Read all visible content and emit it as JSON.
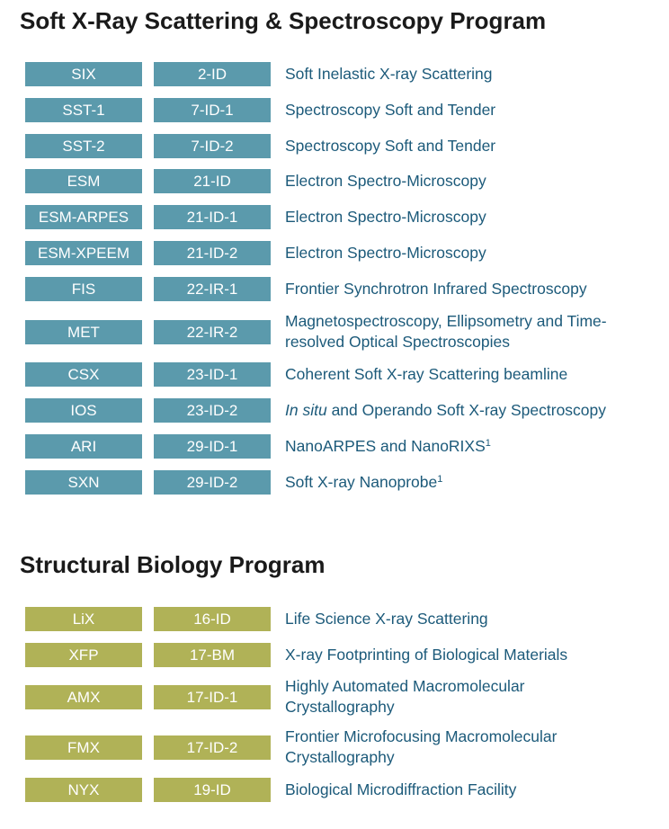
{
  "colors": {
    "soft_xray_badge": "#5b9aac",
    "bio_badge": "#b0b257",
    "link": "#1c5a7a",
    "heading": "#1a1a1a"
  },
  "sections": [
    {
      "title": "Soft X-Ray Scattering & Spectroscopy Program",
      "rows": [
        {
          "acronym": "SIX",
          "beamline": "2-ID",
          "desc": "Soft Inelastic X-ray Scattering"
        },
        {
          "acronym": "SST-1",
          "beamline": "7-ID-1",
          "desc": "Spectroscopy Soft and Tender"
        },
        {
          "acronym": "SST-2",
          "beamline": "7-ID-2",
          "desc": "Spectroscopy Soft and Tender"
        },
        {
          "acronym": "ESM",
          "beamline": "21-ID",
          "desc": "Electron Spectro-Microscopy"
        },
        {
          "acronym": "ESM-ARPES",
          "beamline": "21-ID-1",
          "desc": "Electron Spectro-Microscopy"
        },
        {
          "acronym": "ESM-XPEEM",
          "beamline": "21-ID-2",
          "desc": "Electron Spectro-Microscopy"
        },
        {
          "acronym": "FIS",
          "beamline": "22-IR-1",
          "desc": "Frontier Synchrotron Infrared Spectroscopy"
        },
        {
          "acronym": "MET",
          "beamline": "22-IR-2",
          "desc": "Magnetospectroscopy, Ellipsometry and Time-resolved Optical Spectroscopies"
        },
        {
          "acronym": "CSX",
          "beamline": "23-ID-1",
          "desc": "Coherent Soft X-ray Scattering beamline"
        },
        {
          "acronym": "IOS",
          "beamline": "23-ID-2",
          "desc_italic": "In situ",
          "desc": " and Operando Soft X-ray Spectroscopy"
        },
        {
          "acronym": "ARI",
          "beamline": "29-ID-1",
          "desc": "NanoARPES and NanoRIXS",
          "sup": "1"
        },
        {
          "acronym": "SXN",
          "beamline": "29-ID-2",
          "desc": "Soft X-ray Nanoprobe",
          "sup": "1"
        }
      ]
    },
    {
      "title": "Structural Biology Program",
      "rows": [
        {
          "acronym": "LiX",
          "beamline": "16-ID",
          "desc": "Life Science X-ray Scattering"
        },
        {
          "acronym": "XFP",
          "beamline": "17-BM",
          "desc": "X-ray Footprinting of Biological Materials"
        },
        {
          "acronym": "AMX",
          "beamline": "17-ID-1",
          "desc": "Highly Automated Macromolecular Crystallography"
        },
        {
          "acronym": "FMX",
          "beamline": "17-ID-2",
          "desc": "Frontier Microfocusing Macromolecular Crystallography"
        },
        {
          "acronym": "NYX",
          "beamline": "19-ID",
          "desc": "Biological Microdiffraction Facility"
        }
      ]
    }
  ]
}
